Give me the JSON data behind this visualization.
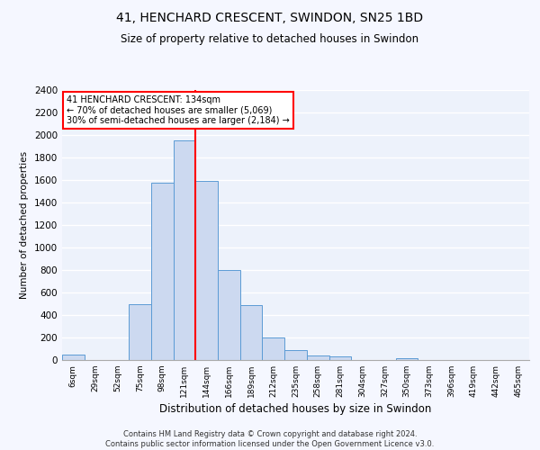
{
  "title": "41, HENCHARD CRESCENT, SWINDON, SN25 1BD",
  "subtitle": "Size of property relative to detached houses in Swindon",
  "xlabel": "Distribution of detached houses by size in Swindon",
  "ylabel": "Number of detached properties",
  "categories": [
    "6sqm",
    "29sqm",
    "52sqm",
    "75sqm",
    "98sqm",
    "121sqm",
    "144sqm",
    "166sqm",
    "189sqm",
    "212sqm",
    "235sqm",
    "258sqm",
    "281sqm",
    "304sqm",
    "327sqm",
    "350sqm",
    "373sqm",
    "396sqm",
    "419sqm",
    "442sqm",
    "465sqm"
  ],
  "values": [
    50,
    0,
    0,
    500,
    1580,
    1950,
    1590,
    800,
    490,
    200,
    90,
    40,
    35,
    0,
    0,
    20,
    0,
    0,
    0,
    0,
    0
  ],
  "bar_color": "#ccd9f0",
  "bar_edge_color": "#5b9bd5",
  "annotation_box_text_line1": "41 HENCHARD CRESCENT: 134sqm",
  "annotation_box_text_line2": "← 70% of detached houses are smaller (5,069)",
  "annotation_box_text_line3": "30% of semi-detached houses are larger (2,184) →",
  "annotation_box_color": "white",
  "annotation_box_edge_color": "red",
  "red_line_index": 6,
  "ylim": [
    0,
    2400
  ],
  "yticks": [
    0,
    200,
    400,
    600,
    800,
    1000,
    1200,
    1400,
    1600,
    1800,
    2000,
    2200,
    2400
  ],
  "footer_text": "Contains HM Land Registry data © Crown copyright and database right 2024.\nContains public sector information licensed under the Open Government Licence v3.0.",
  "background_color": "#edf2fb",
  "grid_color": "#ffffff",
  "fig_bg_color": "#f5f7ff"
}
